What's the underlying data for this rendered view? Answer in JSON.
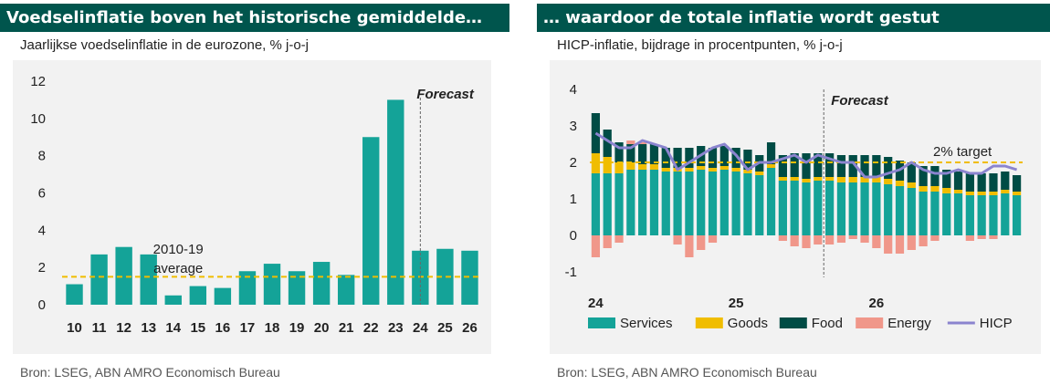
{
  "left": {
    "title": "Voedselinflatie  boven het historische gemiddelde…",
    "subtitle": "Jaarlijkse voedselinflatie in de eurozone, % j-o-j",
    "source": "Bron: LSEG, ABN AMRO Economisch Bureau"
  },
  "right": {
    "title": "… waardoor de totale inflatie wordt gestut",
    "subtitle": "HICP-inflatie, bijdrage in procentpunten, % j-o-j",
    "source": "Bron:  LSEG, ABN AMRO Economisch Bureau"
  },
  "chart_data": [
    {
      "type": "bar",
      "categories": [
        "10",
        "11",
        "12",
        "13",
        "14",
        "15",
        "16",
        "17",
        "18",
        "19",
        "20",
        "21",
        "22",
        "23",
        "24",
        "25",
        "26"
      ],
      "values": [
        1.1,
        2.7,
        3.1,
        2.7,
        0.5,
        1.0,
        0.9,
        1.8,
        2.2,
        1.8,
        2.3,
        1.6,
        9.0,
        11.0,
        2.9,
        3.0,
        2.9
      ],
      "yticks": [
        0,
        2,
        4,
        6,
        8,
        10,
        12
      ],
      "ylim": [
        0,
        12
      ],
      "average": {
        "value": 1.5,
        "label_line1": "2010-19",
        "label_line2": "average"
      },
      "forecast_label": "Forecast",
      "forecast_after_index": 14,
      "bar_color": "#14a398",
      "average_color": "#f0bd00"
    },
    {
      "type": "bar",
      "stacked": true,
      "x_labels": [
        "24",
        "25",
        "26"
      ],
      "x_label_positions": [
        0,
        12,
        24
      ],
      "ylim": [
        -1.2,
        4.2
      ],
      "yticks": [
        -1,
        0,
        1,
        2,
        3,
        4
      ],
      "series": [
        {
          "name": "Services",
          "color": "#14a398",
          "values": [
            1.7,
            1.7,
            1.7,
            1.8,
            1.8,
            1.8,
            1.75,
            1.75,
            1.75,
            1.8,
            1.75,
            1.8,
            1.75,
            1.7,
            1.65,
            1.85,
            1.5,
            1.5,
            1.45,
            1.5,
            1.5,
            1.45,
            1.45,
            1.45,
            1.45,
            1.4,
            1.35,
            1.3,
            1.2,
            1.2,
            1.15,
            1.15,
            1.1,
            1.1,
            1.1,
            1.15,
            1.1
          ]
        },
        {
          "name": "Goods",
          "color": "#f0bd00",
          "values": [
            0.55,
            0.45,
            0.3,
            0.2,
            0.15,
            0.15,
            0.1,
            0.1,
            0.1,
            0.1,
            0.1,
            0.1,
            0.1,
            0.1,
            0.1,
            0.1,
            0.1,
            0.1,
            0.1,
            0.1,
            0.1,
            0.15,
            0.15,
            0.15,
            0.15,
            0.15,
            0.15,
            0.15,
            0.15,
            0.15,
            0.15,
            0.1,
            0.1,
            0.1,
            0.1,
            0.1,
            0.1
          ]
        },
        {
          "name": "Food",
          "color": "#004c45",
          "values": [
            1.1,
            0.75,
            0.55,
            0.5,
            0.55,
            0.55,
            0.55,
            0.55,
            0.55,
            0.55,
            0.55,
            0.55,
            0.55,
            0.55,
            0.45,
            0.6,
            0.6,
            0.65,
            0.7,
            0.65,
            0.65,
            0.6,
            0.6,
            0.6,
            0.6,
            0.6,
            0.55,
            0.55,
            0.55,
            0.55,
            0.5,
            0.5,
            0.5,
            0.5,
            0.5,
            0.5,
            0.45
          ]
        },
        {
          "name": "Energy",
          "color": "#f0978a",
          "values": [
            -0.6,
            -0.35,
            -0.2,
            0.1,
            0.05,
            0.0,
            0.0,
            -0.25,
            -0.6,
            -0.4,
            -0.2,
            0.0,
            0.0,
            0.0,
            0.0,
            0.0,
            -0.15,
            -0.3,
            -0.35,
            -0.25,
            -0.25,
            -0.2,
            -0.1,
            -0.2,
            -0.35,
            -0.5,
            -0.5,
            -0.4,
            -0.3,
            -0.15,
            0.0,
            0.0,
            -0.15,
            -0.1,
            -0.1,
            0.0,
            0.0
          ]
        },
        {
          "name": "HICP",
          "type": "line",
          "color": "#8b84cf",
          "values": [
            2.8,
            2.6,
            2.4,
            2.4,
            2.6,
            2.5,
            2.4,
            1.8,
            2.0,
            2.2,
            2.4,
            2.5,
            2.2,
            1.8,
            2.0,
            2.0,
            2.1,
            2.2,
            2.0,
            2.2,
            2.1,
            2.0,
            2.0,
            1.6,
            1.6,
            1.7,
            1.8,
            2.0,
            1.8,
            1.7,
            1.7,
            1.8,
            1.7,
            1.7,
            1.9,
            1.9,
            1.8
          ]
        }
      ],
      "target": {
        "value": 2.0,
        "label": "2% target",
        "color": "#f0bd00"
      },
      "forecast_label": "Forecast",
      "forecast_after_index": 19.5
    }
  ]
}
